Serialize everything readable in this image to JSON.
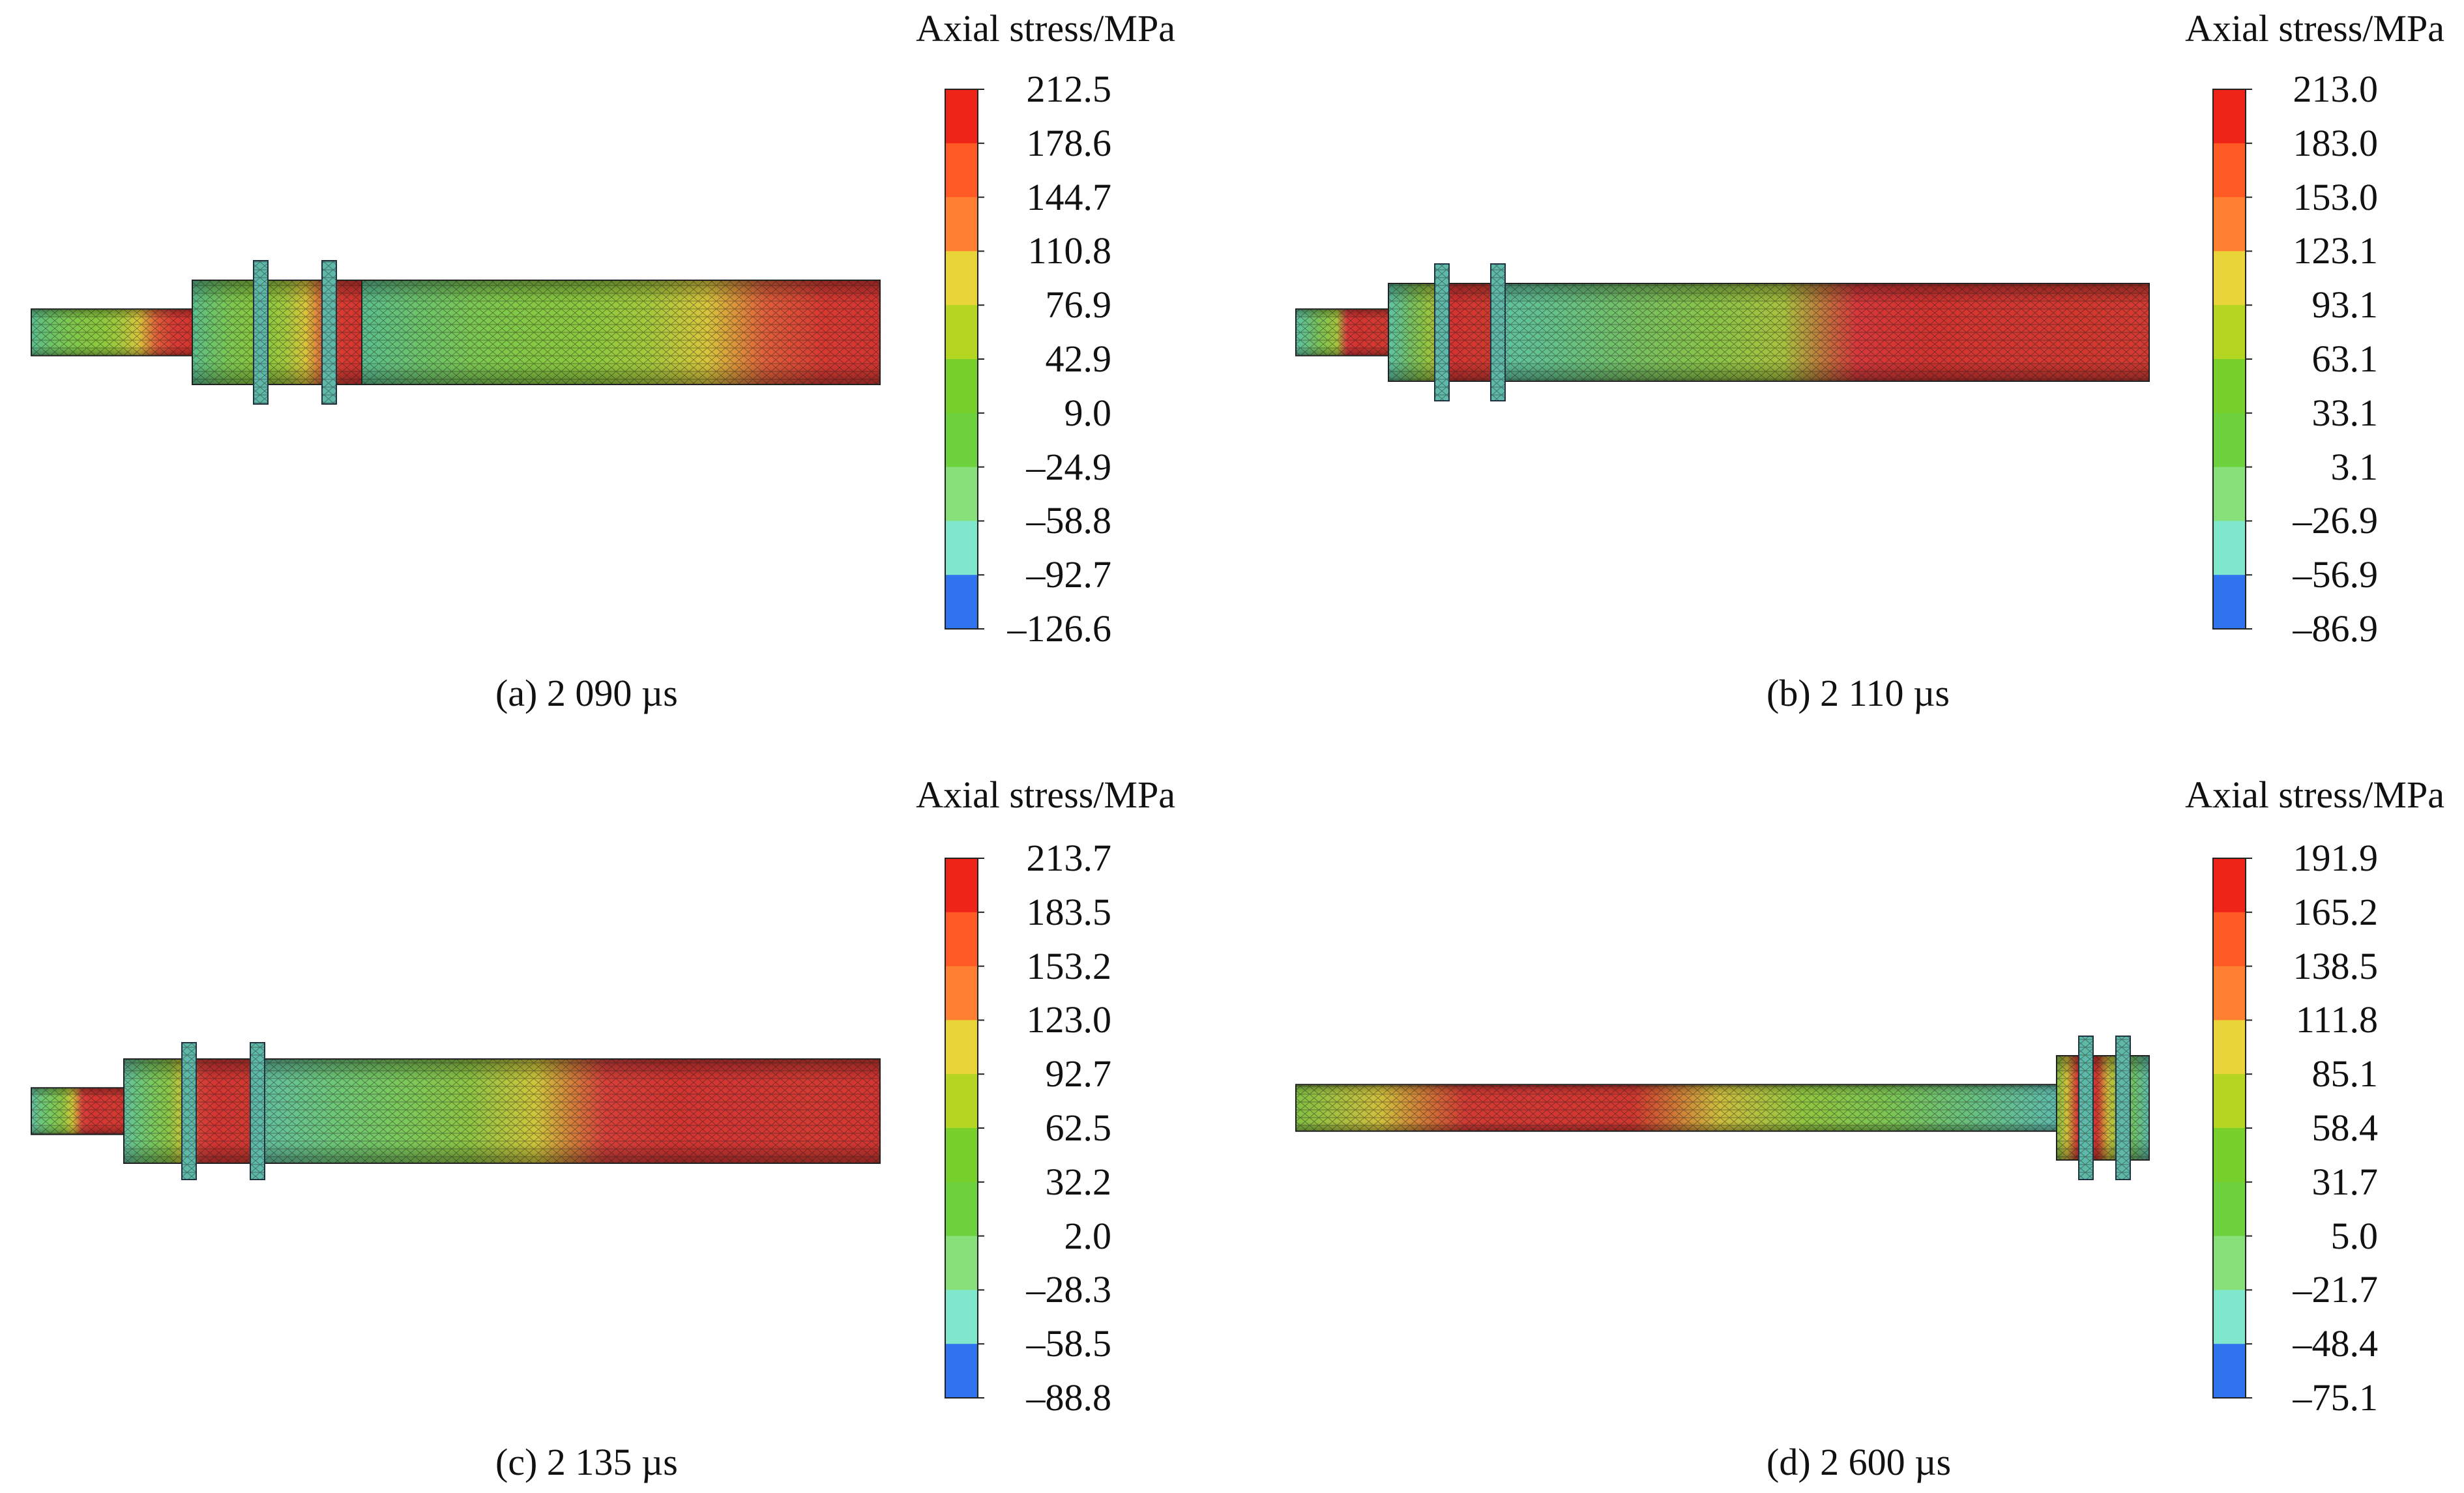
{
  "colorbar_colors": [
    "#2c3fcf",
    "#2f73ee",
    "#7fe8cc",
    "#87e07a",
    "#6ed23e",
    "#78d02a",
    "#b4d522",
    "#e9d43a",
    "#ff8033",
    "#ff5a25",
    "#ee2419"
  ],
  "panels": [
    {
      "caption": "(a) 2 090 µs",
      "colorbar_title": "Axial stress/MPa",
      "colorbar_ticks": [
        "212.5",
        "178.6",
        "144.7",
        "110.8",
        "76.9",
        "42.9",
        "9.0",
        "–24.9",
        "–58.8",
        "–92.7",
        "–126.6"
      ],
      "orientation": "flange-left",
      "bar_gradient": [
        "#5bbf8e",
        "#6cc36a",
        "#7cc850",
        "#86c843",
        "#8ec93e",
        "#a6c93c",
        "#d9c63c",
        "#e05f3a",
        "#d83a32",
        "#d63530"
      ]
    },
    {
      "caption": "(b) 2 110 µs",
      "colorbar_title": "Axial stress/MPa",
      "colorbar_ticks": [
        "213.0",
        "183.0",
        "153.0",
        "123.1",
        "93.1",
        "63.1",
        "33.1",
        "3.1",
        "–26.9",
        "–56.9",
        "–86.9"
      ],
      "orientation": "flange-left",
      "bar_gradient": [
        "#5fc2a4",
        "#66c184",
        "#77c05f",
        "#8ac447",
        "#a7c23e",
        "#d7383a",
        "#d4332f",
        "#d43732",
        "#d3382f",
        "#d33a31"
      ]
    },
    {
      "caption": "(c) 2 135 µs",
      "colorbar_title": "Axial stress/MPa",
      "colorbar_ticks": [
        "213.7",
        "183.5",
        "153.2",
        "123.0",
        "92.7",
        "62.5",
        "32.2",
        "2.0",
        "–28.3",
        "–58.5",
        "–88.8"
      ],
      "orientation": "flange-left",
      "bar_gradient": [
        "#63bfa0",
        "#6dc77a",
        "#7bc95c",
        "#8dc544",
        "#cfc63b",
        "#d8403a",
        "#d53531",
        "#d43633",
        "#d43a31",
        "#d43531"
      ]
    },
    {
      "caption": "(d) 2 600 µs",
      "colorbar_title": "Axial stress/MPa",
      "colorbar_ticks": [
        "191.9",
        "165.2",
        "138.5",
        "111.8",
        "85.1",
        "58.4",
        "31.7",
        "5.0",
        "–21.7",
        "–48.4",
        "–75.1"
      ],
      "orientation": "flange-right",
      "bar_gradient": [
        "#82c043",
        "#d0bf3c",
        "#d33a33",
        "#d43733",
        "#d2382f",
        "#cdbd3d",
        "#91c640",
        "#7cc552",
        "#68c07f",
        "#5fbcab"
      ]
    }
  ]
}
